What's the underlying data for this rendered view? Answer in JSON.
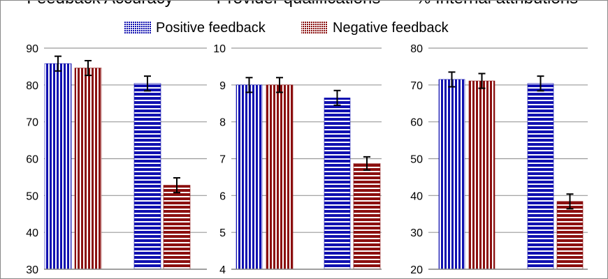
{
  "legend": [
    {
      "name": "Positive feedback",
      "color": "#1010b0"
    },
    {
      "name": "Negative feedback",
      "color": "#8b0f0f"
    }
  ],
  "chart_data": [
    {
      "type": "bar",
      "title": "Feedback Accuracy",
      "ylim": [
        30,
        90
      ],
      "yticks": [
        30,
        40,
        50,
        60,
        70,
        80,
        90
      ],
      "grid": true,
      "groups": 2,
      "series": [
        {
          "name": "Positive feedback",
          "values": [
            85.8,
            80.4
          ],
          "errors": [
            2.0,
            2.0
          ]
        },
        {
          "name": "Negative feedback",
          "values": [
            84.6,
            52.8
          ],
          "errors": [
            2.0,
            2.0
          ]
        }
      ]
    },
    {
      "type": "bar",
      "title": "Provider qualifications",
      "ylim": [
        4,
        10
      ],
      "yticks": [
        4,
        5,
        6,
        7,
        8,
        9,
        10
      ],
      "grid": true,
      "groups": 2,
      "series": [
        {
          "name": "Positive feedback",
          "values": [
            9.0,
            8.65
          ],
          "errors": [
            0.2,
            0.2
          ]
        },
        {
          "name": "Negative feedback",
          "values": [
            9.0,
            6.87
          ],
          "errors": [
            0.2,
            0.18
          ]
        }
      ]
    },
    {
      "type": "bar",
      "title": "% Internal attributions",
      "ylim": [
        20,
        80
      ],
      "yticks": [
        20,
        30,
        40,
        50,
        60,
        70,
        80
      ],
      "grid": true,
      "groups": 2,
      "series": [
        {
          "name": "Positive feedback",
          "values": [
            71.5,
            70.4
          ],
          "errors": [
            2.0,
            2.0
          ]
        },
        {
          "name": "Negative feedback",
          "values": [
            71.1,
            38.4
          ],
          "errors": [
            2.0,
            2.0
          ]
        }
      ]
    }
  ]
}
